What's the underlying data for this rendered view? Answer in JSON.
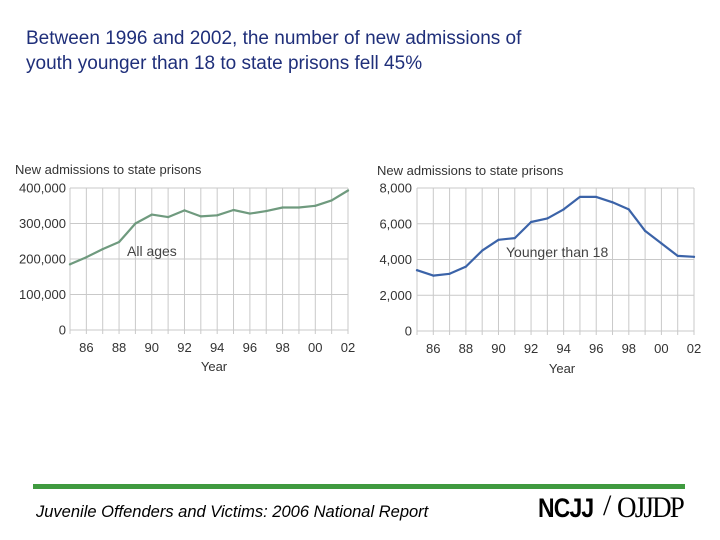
{
  "slide": {
    "title_line1": "Between 1996 and 2002, the number of new admissions of",
    "title_line2": "youth younger than 18 to state prisons fell 45%",
    "footer": "Juvenile Offenders and Victims: 2006 National Report",
    "logo_left": "NCJJ",
    "logo_right": "OJJDP"
  },
  "colors": {
    "title": "#1f2f7a",
    "all_ages_line": "#6f9a7e",
    "under18_line": "#3b63a8",
    "footer_bar": "#3f9a3f",
    "grid": "#c9c9c9"
  },
  "chart_data": [
    {
      "type": "line",
      "ylabel": "New admissions to state prisons",
      "xlabel": "Year",
      "annotation": "All ages",
      "ylim": [
        0,
        400000
      ],
      "xlim": [
        1985,
        2002
      ],
      "grid": true,
      "y_ticks": [
        "400,000",
        "300,000",
        "200,000",
        "100,000",
        "0"
      ],
      "y_tick_values": [
        400000,
        300000,
        200000,
        100000,
        0
      ],
      "x_ticks": [
        "86",
        "88",
        "90",
        "92",
        "94",
        "96",
        "98",
        "00",
        "02"
      ],
      "x_tick_values": [
        1986,
        1988,
        1990,
        1992,
        1994,
        1996,
        1998,
        2000,
        2002
      ],
      "x": [
        1985,
        1986,
        1987,
        1988,
        1989,
        1990,
        1991,
        1992,
        1993,
        1994,
        1995,
        1996,
        1997,
        1998,
        1999,
        2000,
        2001,
        2002
      ],
      "values": [
        185000,
        205000,
        228000,
        248000,
        300000,
        325000,
        318000,
        337000,
        320000,
        323000,
        338000,
        328000,
        335000,
        345000,
        345000,
        350000,
        365000,
        393000
      ]
    },
    {
      "type": "line",
      "ylabel": "New admissions to state prisons",
      "xlabel": "Year",
      "annotation": "Younger than 18",
      "ylim": [
        0,
        8000
      ],
      "xlim": [
        1985,
        2002
      ],
      "grid": true,
      "y_ticks": [
        "8,000",
        "6,000",
        "4,000",
        "2,000",
        "0"
      ],
      "y_tick_values": [
        8000,
        6000,
        4000,
        2000,
        0
      ],
      "x_ticks": [
        "86",
        "88",
        "90",
        "92",
        "94",
        "96",
        "98",
        "00",
        "02"
      ],
      "x_tick_values": [
        1986,
        1988,
        1990,
        1992,
        1994,
        1996,
        1998,
        2000,
        2002
      ],
      "x": [
        1985,
        1986,
        1987,
        1988,
        1989,
        1990,
        1991,
        1992,
        1993,
        1994,
        1995,
        1996,
        1997,
        1998,
        1999,
        2000,
        2001,
        2002
      ],
      "values": [
        3400,
        3100,
        3200,
        3600,
        4500,
        5100,
        5200,
        6100,
        6300,
        6800,
        7500,
        7500,
        7200,
        6800,
        5600,
        4900,
        4200,
        4150
      ]
    }
  ]
}
